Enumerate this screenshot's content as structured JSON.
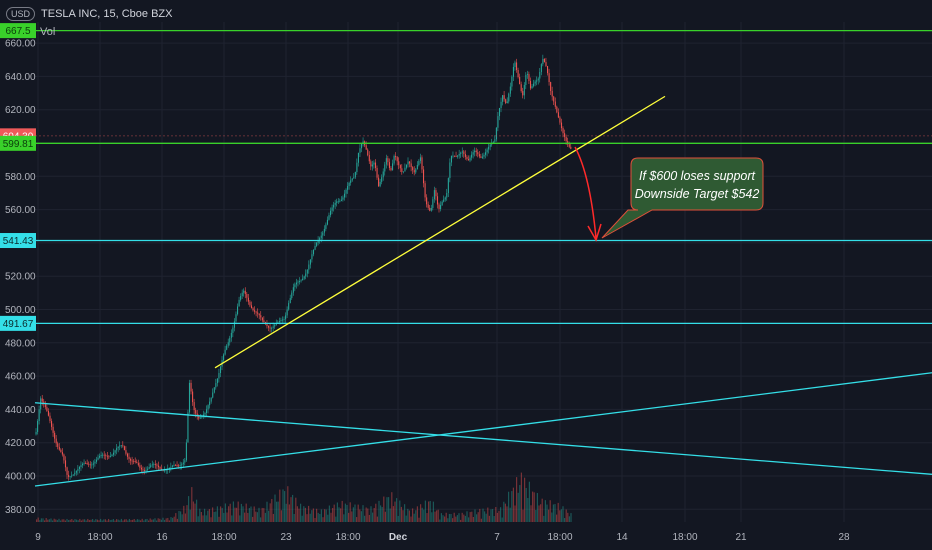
{
  "header": {
    "currency_badge": "USD",
    "symbol_title": "TESLA INC, 15, Cboe BZX",
    "volume_label": "Vol"
  },
  "colors": {
    "background": "#131722",
    "grid": "#1f2330",
    "axis_text": "#b2b5be",
    "candle_up": "#26a69a",
    "candle_down": "#ef5350",
    "green_line": "#39d12a",
    "cyan_line": "#34dfe8",
    "yellow_line": "#ffff3b",
    "arrow_red": "#ff2a2a",
    "callout_fill": "#2f5a33",
    "callout_border": "#e0503a",
    "price_badge_red": "#f05a5a"
  },
  "chart_data": {
    "type": "candlestick",
    "ylim": [
      368,
      670
    ],
    "y_ticks": [
      380,
      400,
      420,
      440,
      460,
      480,
      500,
      520,
      540,
      560,
      580,
      600,
      620,
      640,
      660
    ],
    "x_tick_labels": [
      "9",
      "18:00",
      "16",
      "18:00",
      "23",
      "18:00",
      "Dec",
      "7",
      "18:00",
      "14",
      "18:00",
      "21",
      "28"
    ],
    "horizontal_levels": [
      {
        "value": 667.5,
        "color": "green",
        "badge": "667.5"
      },
      {
        "value": 599.81,
        "color": "green",
        "badge": "599.81"
      },
      {
        "value": 541.43,
        "color": "cyan",
        "badge": "541.43"
      },
      {
        "value": 491.67,
        "color": "cyan",
        "badge": "491.67"
      }
    ],
    "last_price_badge": "604.30",
    "trendlines": [
      {
        "name": "yellow-support",
        "color": "yellow",
        "from": [
          215,
          465
        ],
        "to": [
          665,
          628
        ]
      },
      {
        "name": "cyan-descending",
        "color": "cyan",
        "from": [
          35,
          444
        ],
        "to": [
          932,
          401
        ]
      },
      {
        "name": "cyan-ascending",
        "color": "cyan",
        "from": [
          35,
          394
        ],
        "to": [
          932,
          462
        ]
      }
    ],
    "annotation": {
      "line1": "If $600 loses support",
      "line2": "Downside Target $542"
    },
    "price_path": [
      [
        35,
        425
      ],
      [
        40,
        448
      ],
      [
        45,
        440
      ],
      [
        55,
        422
      ],
      [
        62,
        412
      ],
      [
        67,
        398
      ],
      [
        75,
        404
      ],
      [
        90,
        408
      ],
      [
        100,
        411
      ],
      [
        112,
        414
      ],
      [
        122,
        418
      ],
      [
        130,
        410
      ],
      [
        140,
        404
      ],
      [
        150,
        406
      ],
      [
        160,
        405
      ],
      [
        170,
        404
      ],
      [
        185,
        410
      ],
      [
        189,
        455
      ],
      [
        193,
        440
      ],
      [
        198,
        436
      ],
      [
        205,
        437
      ],
      [
        210,
        445
      ],
      [
        214,
        455
      ],
      [
        218,
        462
      ],
      [
        222,
        470
      ],
      [
        228,
        480
      ],
      [
        233,
        492
      ],
      [
        238,
        505
      ],
      [
        243,
        510
      ],
      [
        250,
        503
      ],
      [
        256,
        498
      ],
      [
        262,
        492
      ],
      [
        270,
        490
      ],
      [
        278,
        491
      ],
      [
        284,
        495
      ],
      [
        288,
        505
      ],
      [
        293,
        513
      ],
      [
        300,
        517
      ],
      [
        306,
        524
      ],
      [
        312,
        533
      ],
      [
        318,
        542
      ],
      [
        324,
        550
      ],
      [
        330,
        558
      ],
      [
        336,
        565
      ],
      [
        342,
        568
      ],
      [
        348,
        574
      ],
      [
        354,
        580
      ],
      [
        358,
        596
      ],
      [
        362,
        602
      ],
      [
        366,
        594
      ],
      [
        370,
        585
      ],
      [
        374,
        590
      ],
      [
        378,
        575
      ],
      [
        382,
        580
      ],
      [
        386,
        590
      ],
      [
        390,
        583
      ],
      [
        394,
        595
      ],
      [
        398,
        587
      ],
      [
        402,
        580
      ],
      [
        408,
        590
      ],
      [
        414,
        583
      ],
      [
        420,
        590
      ],
      [
        425,
        565
      ],
      [
        430,
        560
      ],
      [
        434,
        572
      ],
      [
        438,
        558
      ],
      [
        442,
        565
      ],
      [
        446,
        570
      ],
      [
        450,
        593
      ],
      [
        456,
        590
      ],
      [
        462,
        596
      ],
      [
        468,
        590
      ],
      [
        474,
        594
      ],
      [
        480,
        592
      ],
      [
        486,
        596
      ],
      [
        494,
        600
      ],
      [
        498,
        620
      ],
      [
        502,
        630
      ],
      [
        506,
        622
      ],
      [
        510,
        633
      ],
      [
        514,
        650
      ],
      [
        518,
        640
      ],
      [
        522,
        628
      ],
      [
        526,
        642
      ],
      [
        530,
        632
      ],
      [
        534,
        638
      ],
      [
        538,
        640
      ],
      [
        542,
        650
      ],
      [
        546,
        644
      ],
      [
        550,
        632
      ],
      [
        554,
        625
      ],
      [
        558,
        615
      ],
      [
        562,
        605
      ],
      [
        566,
        600
      ],
      [
        570,
        598
      ]
    ],
    "volume_profile": [
      [
        35,
        3
      ],
      [
        60,
        2
      ],
      [
        100,
        2
      ],
      [
        140,
        2
      ],
      [
        170,
        3
      ],
      [
        186,
        12
      ],
      [
        190,
        25
      ],
      [
        200,
        8
      ],
      [
        215,
        10
      ],
      [
        235,
        14
      ],
      [
        260,
        9
      ],
      [
        285,
        25
      ],
      [
        300,
        12
      ],
      [
        320,
        8
      ],
      [
        340,
        14
      ],
      [
        370,
        10
      ],
      [
        390,
        20
      ],
      [
        410,
        8
      ],
      [
        430,
        16
      ],
      [
        440,
        6
      ],
      [
        460,
        6
      ],
      [
        480,
        9
      ],
      [
        500,
        10
      ],
      [
        520,
        34
      ],
      [
        540,
        16
      ],
      [
        560,
        12
      ],
      [
        570,
        6
      ]
    ]
  }
}
